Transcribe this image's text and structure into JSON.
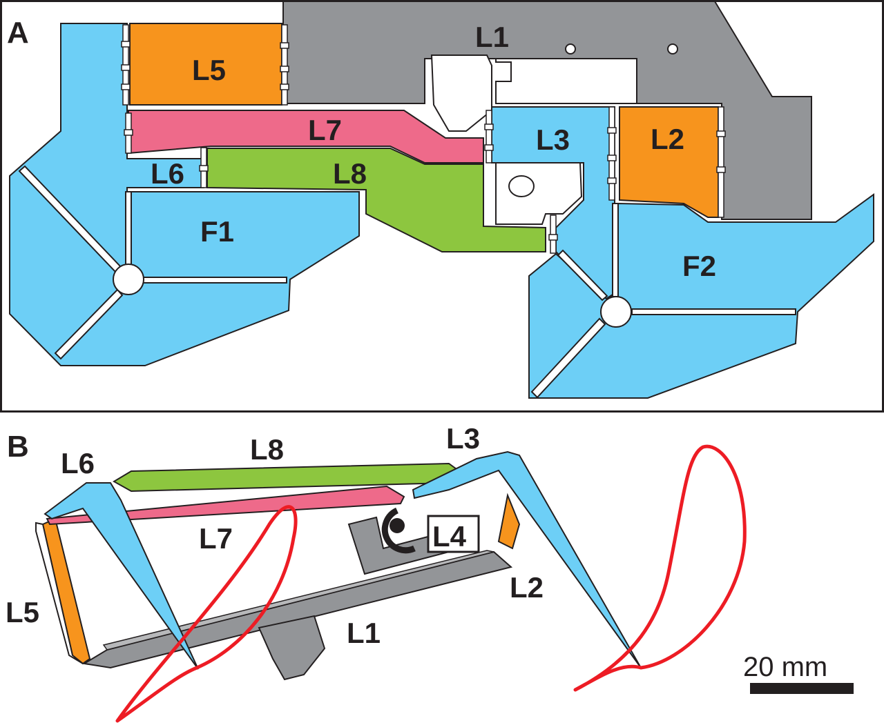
{
  "colors": {
    "link_blue": "#6dcff6",
    "link_orange": "#f7941d",
    "link_pink": "#ee6a8a",
    "link_green": "#8dc63f",
    "frame_gray": "#939598",
    "trajectory_red": "#ed1c24",
    "outline": "#231f20"
  },
  "panel_a": {
    "letter": "A",
    "labels": {
      "l1": "L1",
      "l2": "L2",
      "l3": "L3",
      "l5": "L5",
      "l6": "L6",
      "l7": "L7",
      "l8": "L8",
      "f1": "F1",
      "f2": "F2"
    }
  },
  "panel_b": {
    "letter": "B",
    "labels": {
      "l1": "L1",
      "l2": "L2",
      "l3": "L3",
      "l4": "L4",
      "l5": "L5",
      "l6": "L6",
      "l7": "L7",
      "l8": "L8"
    },
    "scale_bar": {
      "text": "20 mm"
    }
  }
}
